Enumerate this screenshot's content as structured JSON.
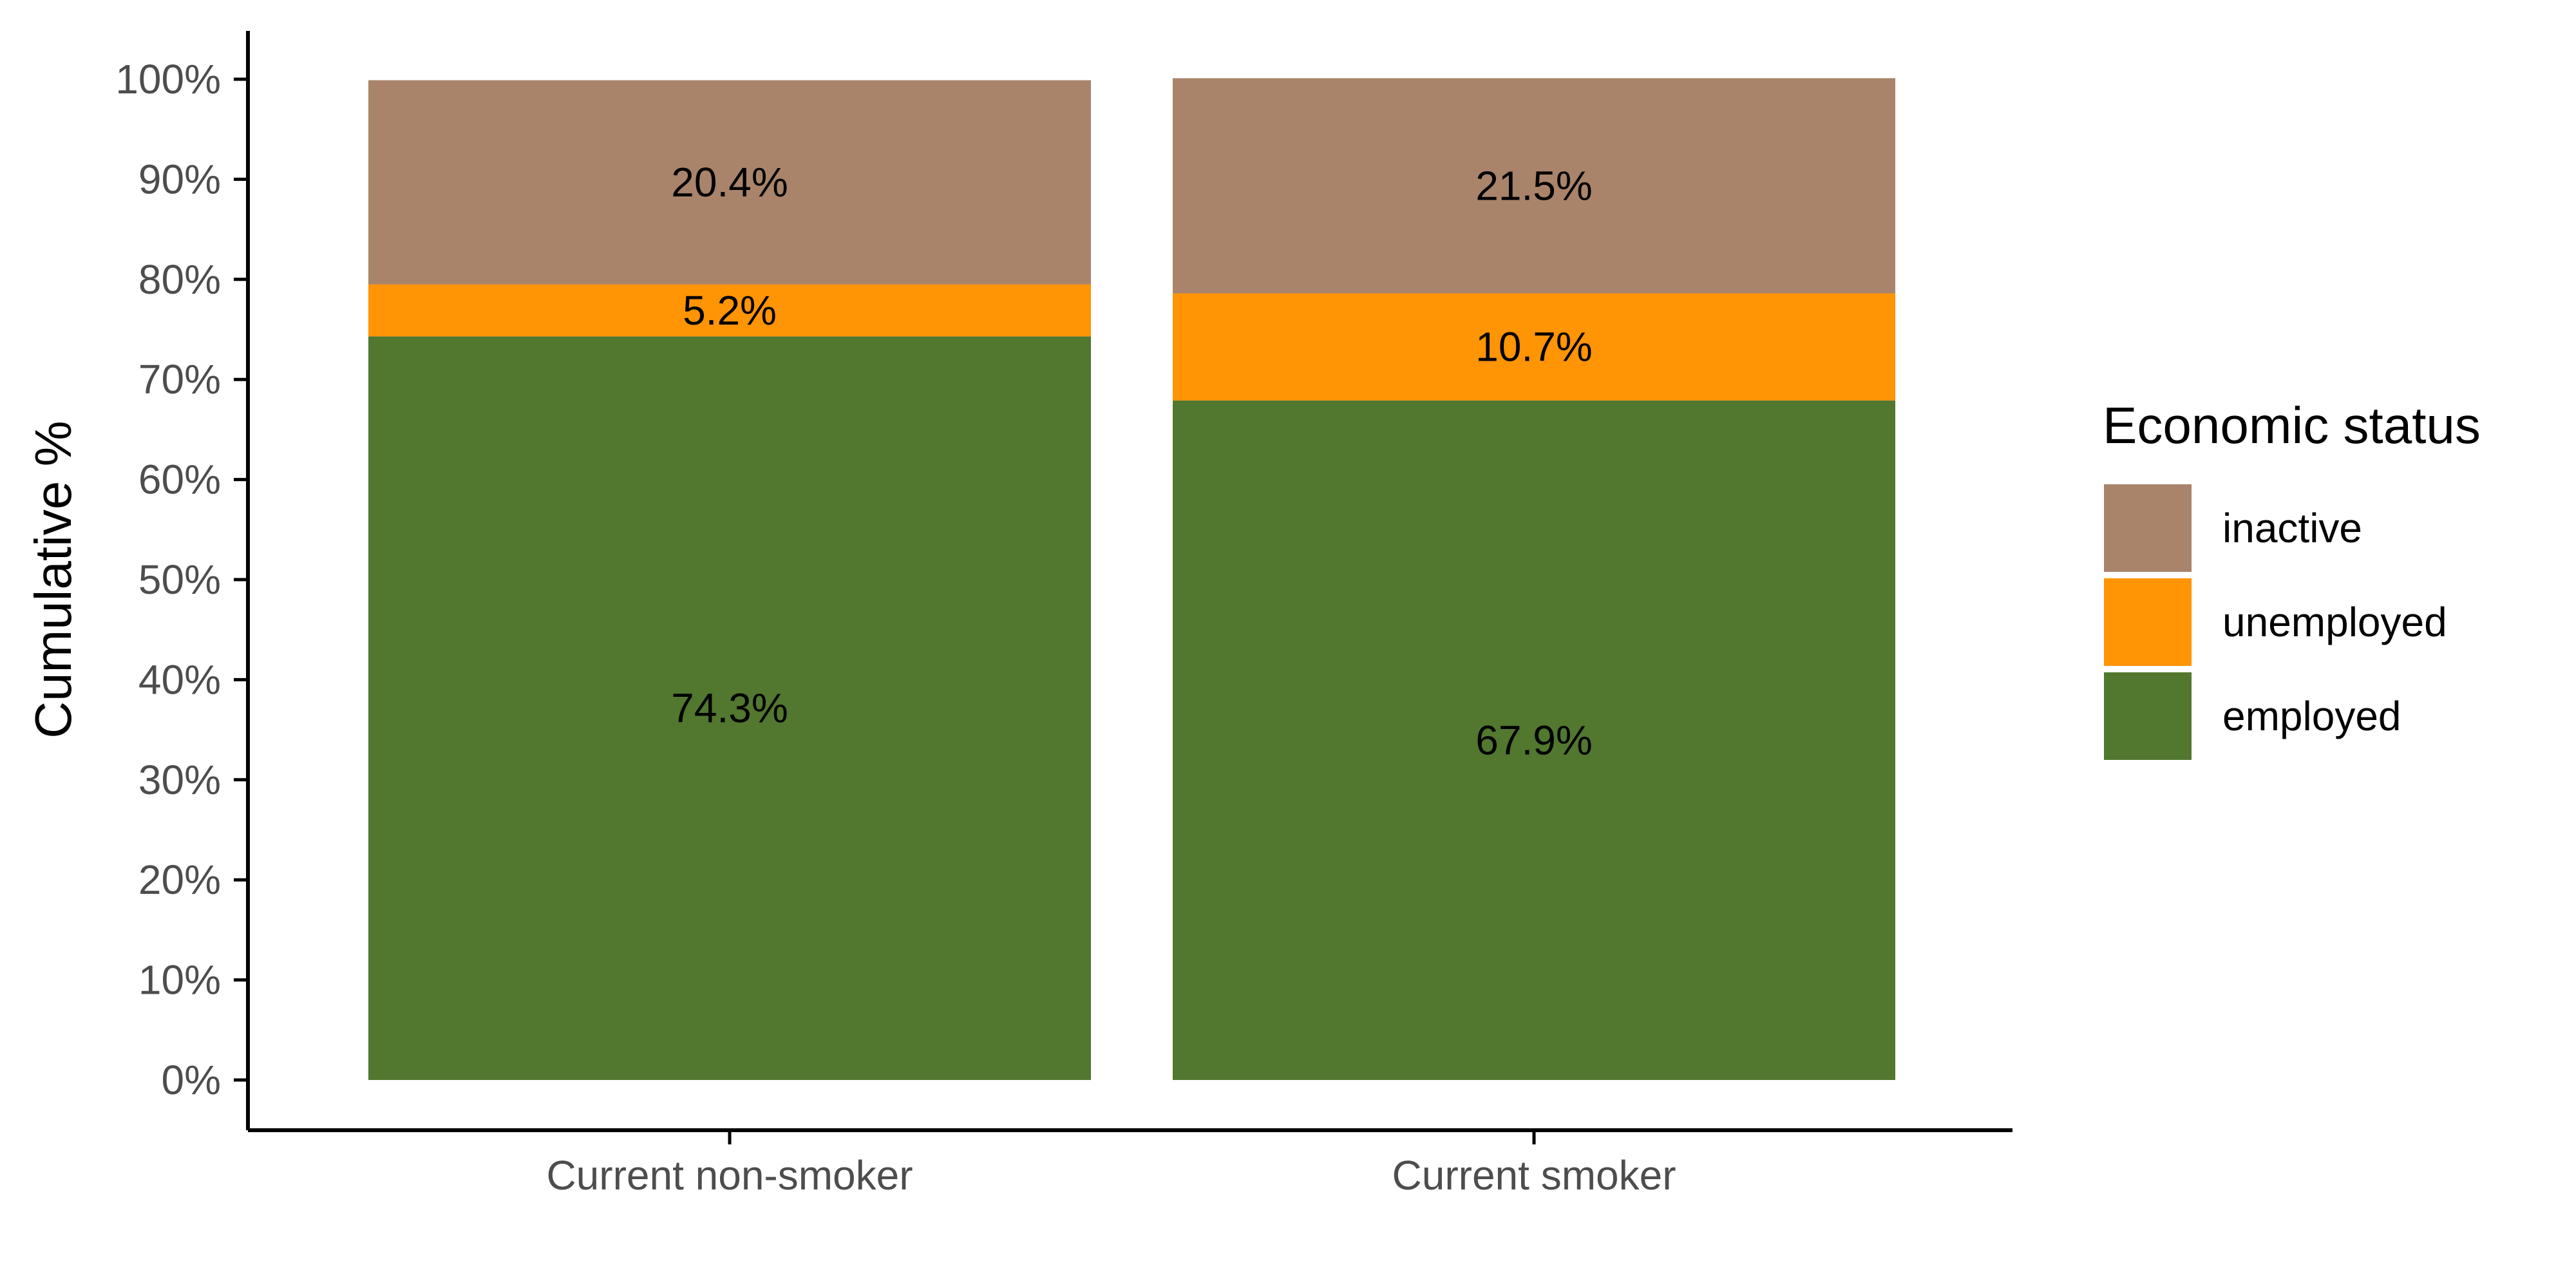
{
  "chart_data": {
    "type": "bar",
    "stacked": true,
    "categories": [
      "Current non-smoker",
      "Current smoker"
    ],
    "series": [
      {
        "name": "employed",
        "values": [
          74.3,
          67.9
        ],
        "labels": [
          "74.3%",
          "67.9%"
        ],
        "color": "#52772f"
      },
      {
        "name": "unemployed",
        "values": [
          5.2,
          10.7
        ],
        "labels": [
          "5.2%",
          "10.7%"
        ],
        "color": "#ff9405"
      },
      {
        "name": "inactive",
        "values": [
          20.4,
          21.5
        ],
        "labels": [
          "20.4%",
          "21.5%"
        ],
        "color": "#a9846a"
      }
    ],
    "title": "",
    "xlabel": "",
    "ylabel": "Cumulative %",
    "ylim": [
      0,
      100
    ],
    "yticks": [
      "0%",
      "10%",
      "20%",
      "30%",
      "40%",
      "50%",
      "60%",
      "70%",
      "80%",
      "90%",
      "100%"
    ],
    "legend": {
      "title": "Economic status",
      "items": [
        "inactive",
        "unemployed",
        "employed"
      ],
      "position": "right"
    },
    "grid": false
  }
}
